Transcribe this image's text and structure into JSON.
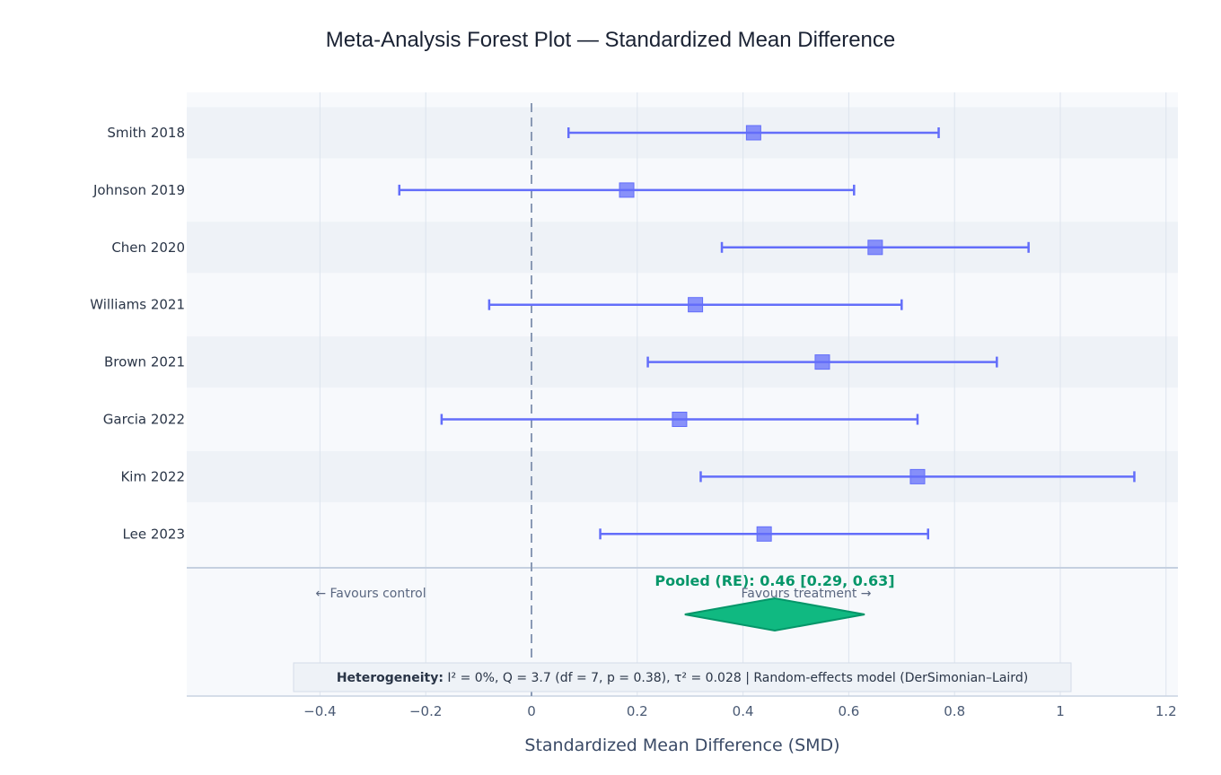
{
  "chart_data": {
    "type": "forest",
    "title": "Meta-Analysis Forest Plot — Standardized Mean Difference",
    "xlabel": "Standardized Mean Difference (SMD)",
    "xlim": [
      -0.63,
      1.22
    ],
    "x_ticks": [
      {
        "value": -0.4,
        "label": "−0.4"
      },
      {
        "value": -0.2,
        "label": "−0.2"
      },
      {
        "value": 0,
        "label": "0"
      },
      {
        "value": 0.2,
        "label": "0.2"
      },
      {
        "value": 0.4,
        "label": "0.4"
      },
      {
        "value": 0.6,
        "label": "0.6"
      },
      {
        "value": 0.8,
        "label": "0.8"
      },
      {
        "value": 1,
        "label": "1"
      },
      {
        "value": 1.2,
        "label": "1.2"
      }
    ],
    "null_line": 0,
    "grid": true,
    "studies": [
      {
        "name": "Smith 2018",
        "smd": 0.42,
        "ci_low": 0.07,
        "ci_high": 0.77
      },
      {
        "name": "Johnson 2019",
        "smd": 0.18,
        "ci_low": -0.25,
        "ci_high": 0.61
      },
      {
        "name": "Chen 2020",
        "smd": 0.65,
        "ci_low": 0.36,
        "ci_high": 0.94
      },
      {
        "name": "Williams 2021",
        "smd": 0.31,
        "ci_low": -0.08,
        "ci_high": 0.7
      },
      {
        "name": "Brown 2021",
        "smd": 0.55,
        "ci_low": 0.22,
        "ci_high": 0.88
      },
      {
        "name": "Garcia 2022",
        "smd": 0.28,
        "ci_low": -0.17,
        "ci_high": 0.73
      },
      {
        "name": "Kim 2022",
        "smd": 0.73,
        "ci_low": 0.32,
        "ci_high": 1.14
      },
      {
        "name": "Lee 2023",
        "smd": 0.44,
        "ci_low": 0.13,
        "ci_high": 0.75
      }
    ],
    "pooled": {
      "label": "Pooled (RE): 0.46 [0.29, 0.63]",
      "estimate": 0.46,
      "ci_low": 0.29,
      "ci_high": 0.63
    },
    "annotations": {
      "favours_left": "← Favours control",
      "favours_right": "Favours treatment →"
    },
    "heterogeneity": {
      "label": "Heterogeneity:",
      "text": "I² = 0%,  Q = 3.7 (df = 7, p = 0.38),  τ² = 0.028   |   Random-effects model (DerSimonian–Laird)"
    },
    "colors": {
      "study": "#636efa",
      "pooled": "#10b981",
      "pooled_edge": "#059669",
      "null_line": "#8a9ab5",
      "band": "#eef2f7",
      "plot_bg": "#f7f9fc",
      "grid": "#dde4ee"
    }
  }
}
